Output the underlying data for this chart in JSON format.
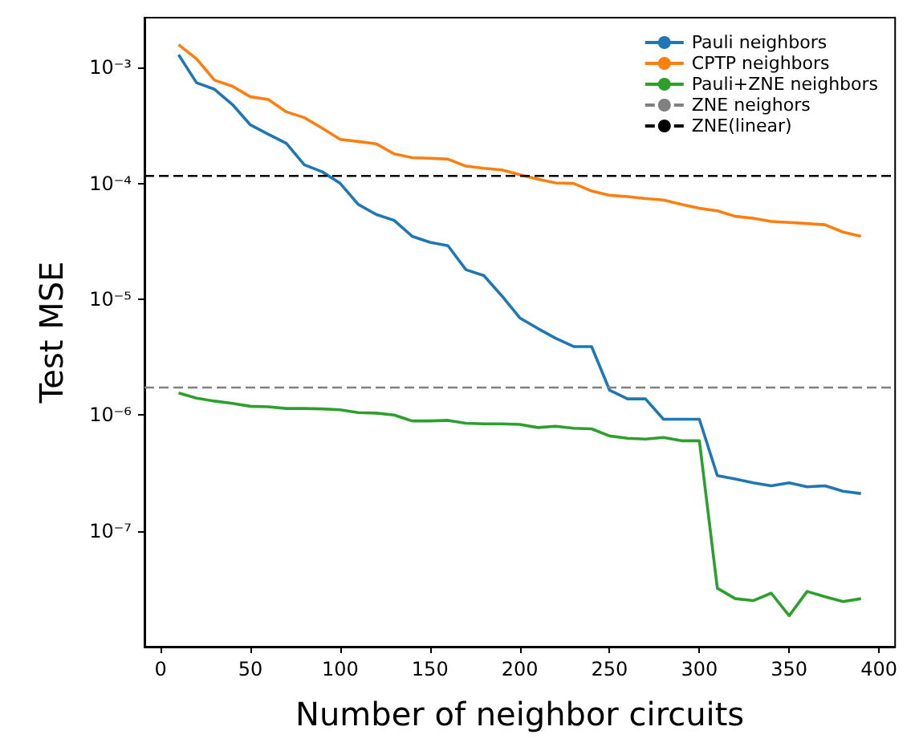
{
  "chart_data": {
    "type": "line",
    "xlabel": "Number of neighbor circuits",
    "ylabel": "Test MSE",
    "log": "y",
    "grid": false,
    "legend": "top right",
    "marker": "none",
    "line_style": "solid",
    "x": [
      10,
      20,
      30,
      40,
      50,
      60,
      70,
      80,
      90,
      100,
      110,
      120,
      130,
      140,
      150,
      160,
      170,
      180,
      190,
      200,
      210,
      220,
      230,
      240,
      250,
      260,
      270,
      280,
      290,
      300,
      310,
      320,
      330,
      340,
      350,
      360,
      370,
      380,
      390
    ],
    "xlim": [
      -9,
      409
    ],
    "xticks": [
      0,
      50,
      100,
      150,
      200,
      250,
      300,
      350,
      400
    ],
    "ylim": [
      1e-08,
      0.0027
    ],
    "yticks": [
      {
        "value": 1e-07,
        "label": "10⁻⁷"
      },
      {
        "value": 1e-06,
        "label": "10⁻⁶"
      },
      {
        "value": 1e-05,
        "label": "10⁻⁵"
      },
      {
        "value": 0.0001,
        "label": "10⁻⁴"
      },
      {
        "value": 0.001,
        "label": "10⁻³"
      }
    ],
    "series": [
      {
        "name": "Pauli neighbors",
        "color": "#1f77b4",
        "values": [
          0.00129,
          0.00074,
          0.00065,
          0.00048,
          0.00032,
          0.000266,
          0.000222,
          0.000145,
          0.000126,
          0.0001,
          6.6e-05,
          5.4e-05,
          4.8e-05,
          3.5e-05,
          3.1e-05,
          2.9e-05,
          1.8e-05,
          1.6e-05,
          1.07e-05,
          6.9e-06,
          5.6e-06,
          4.6e-06,
          3.9e-06,
          3.9e-06,
          1.64e-06,
          1.38e-06,
          1.38e-06,
          9.2e-07,
          9.2e-07,
          9.2e-07,
          3e-07,
          2.8e-07,
          2.6e-07,
          2.45e-07,
          2.6e-07,
          2.4e-07,
          2.45e-07,
          2.2e-07,
          2.1e-07
        ]
      },
      {
        "name": "CPTP neighbors",
        "color": "#ff7f0e",
        "values": [
          0.00158,
          0.00119,
          0.00078,
          0.00069,
          0.00056,
          0.00053,
          0.000415,
          0.00037,
          0.0003,
          0.00024,
          0.00023,
          0.00022,
          0.00018,
          0.000167,
          0.000165,
          0.000162,
          0.000141,
          0.000135,
          0.000131,
          0.000119,
          0.000109,
          0.000101,
          0.0001,
          8.6e-05,
          7.9e-05,
          7.7e-05,
          7.4e-05,
          7.2e-05,
          6.6e-05,
          6.1e-05,
          5.8e-05,
          5.2e-05,
          5e-05,
          4.7e-05,
          4.6e-05,
          4.5e-05,
          4.4e-05,
          3.8e-05,
          3.5e-05
        ]
      },
      {
        "name": "Pauli+ZNE neighbors",
        "color": "#2ca02c",
        "values": [
          1.55e-06,
          1.4e-06,
          1.32e-06,
          1.26e-06,
          1.19e-06,
          1.18e-06,
          1.14e-06,
          1.14e-06,
          1.13e-06,
          1.11e-06,
          1.05e-06,
          1.04e-06,
          1e-06,
          8.9e-07,
          8.9e-07,
          9e-07,
          8.5e-07,
          8.4e-07,
          8.4e-07,
          8.3e-07,
          7.8e-07,
          8e-07,
          7.7e-07,
          7.6e-07,
          6.6e-07,
          6.3e-07,
          6.2e-07,
          6.4e-07,
          6e-07,
          6e-07,
          3.2e-08,
          2.6e-08,
          2.5e-08,
          2.9e-08,
          1.85e-08,
          3e-08,
          2.7e-08,
          2.45e-08,
          2.6e-08
        ]
      }
    ],
    "ref_lines": [
      {
        "axis": "y",
        "value": 1.73e-06,
        "label": "ZNE neighors",
        "color": "#808080",
        "line_style": "dashed"
      },
      {
        "axis": "y",
        "value": 0.000116,
        "label": "ZNE(linear)",
        "color": "#000000",
        "line_style": "dashed"
      }
    ]
  }
}
